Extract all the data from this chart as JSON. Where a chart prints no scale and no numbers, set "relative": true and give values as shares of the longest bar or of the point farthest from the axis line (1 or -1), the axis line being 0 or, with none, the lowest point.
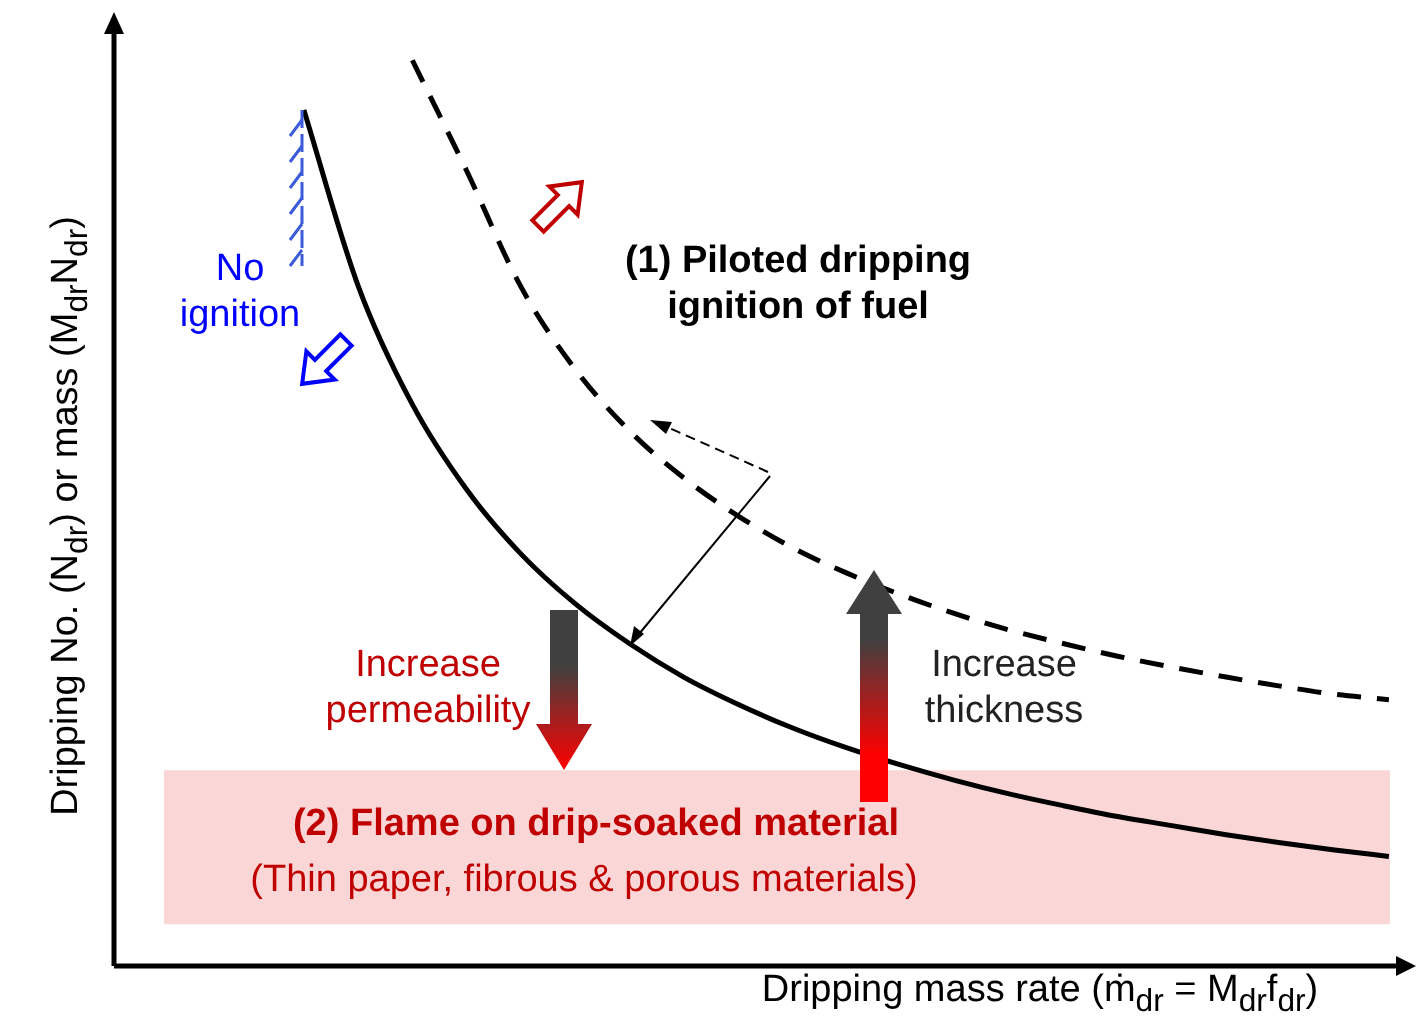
{
  "chart_data": {
    "type": "line",
    "relative": true,
    "marker": "none",
    "legend": false,
    "xlabel": "Dripping mass rate (ṁ$_{dr}$ = M$_{dr}$f$_{dr}$)",
    "ylabel": "Dripping No. (N$_{dr}$) or mass (M$_{dr}$N$_{dr}$)",
    "categories": [
      null,
      null,
      null,
      null,
      null,
      null,
      null,
      null,
      null,
      null,
      null,
      null,
      null,
      null,
      null,
      null,
      null,
      null,
      null,
      null,
      null
    ],
    "series": [
      {
        "color": "#000000",
        "line_style": "solid",
        "values": [
          0.945,
          0.751,
          0.62,
          0.526,
          0.455,
          0.4,
          0.356,
          0.319,
          0.289,
          0.263,
          0.241,
          0.222,
          0.205,
          0.19,
          0.177,
          0.165,
          0.155,
          0.145,
          0.136,
          0.128,
          0.121
        ]
      },
      {
        "color": "#000000",
        "line_style": "dashed",
        "values": [
          null,
          null,
          1,
          0.878,
          0.75,
          0.659,
          0.591,
          0.539,
          0.497,
          0.462,
          0.434,
          0.41,
          0.389,
          0.371,
          0.356,
          0.342,
          0.33,
          0.319,
          0.309,
          0.3,
          0.294
        ]
      }
    ],
    "bands": [
      {
        "axis": "y",
        "from": 0.046,
        "to": 0.216,
        "color": "#fbd6d6",
        "label": "(2) Flame on drip-soaked material"
      }
    ],
    "annotations": [
      "No ignition",
      "(1) Piloted dripping ignition of fuel",
      "Increase permeability",
      "Increase thickness",
      "(Thin paper, fibrous & porous materials)"
    ]
  }
}
